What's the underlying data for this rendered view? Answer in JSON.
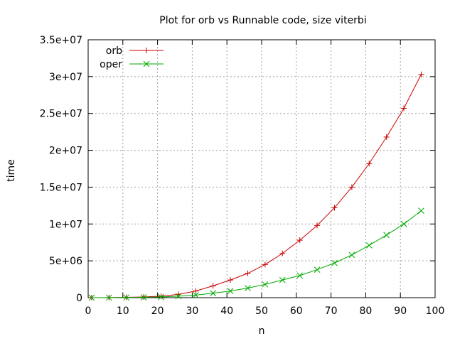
{
  "chart_data": {
    "type": "line",
    "title": "Plot for orb vs Runnable code, size viterbi",
    "xlabel": "n",
    "ylabel": "time",
    "xlim": [
      0,
      100
    ],
    "ylim": [
      0,
      35000000
    ],
    "x_ticks": [
      0,
      10,
      20,
      30,
      40,
      50,
      60,
      70,
      80,
      90,
      100
    ],
    "x_tick_labels": [
      "0",
      "10",
      "20",
      "30",
      "40",
      "50",
      "60",
      "70",
      "80",
      "90",
      "100"
    ],
    "y_ticks": [
      0,
      5000000,
      10000000,
      15000000,
      20000000,
      25000000,
      30000000,
      35000000
    ],
    "y_tick_labels": [
      "0",
      "5e+06",
      "1e+07",
      "1.5e+07",
      "2e+07",
      "2.5e+07",
      "3e+07",
      "3.5e+07"
    ],
    "grid": true,
    "legend_position": "top-left",
    "x": [
      1,
      6,
      11,
      16,
      21,
      26,
      31,
      36,
      41,
      46,
      51,
      56,
      61,
      66,
      71,
      76,
      81,
      86,
      91,
      96
    ],
    "series": [
      {
        "name": "orb",
        "color": "#cc0000",
        "marker": "plus",
        "values": [
          0,
          10000,
          50000,
          100000,
          200000,
          450000,
          900000,
          1600000,
          2400000,
          3300000,
          4500000,
          6000000,
          7800000,
          9800000,
          12200000,
          15000000,
          18200000,
          21800000,
          25700000,
          30300000
        ]
      },
      {
        "name": "oper",
        "color": "#00aa00",
        "marker": "cross",
        "values": [
          0,
          5000,
          20000,
          50000,
          100000,
          200000,
          350000,
          600000,
          900000,
          1300000,
          1800000,
          2400000,
          3000000,
          3800000,
          4700000,
          5800000,
          7100000,
          8500000,
          10000000,
          11800000
        ]
      }
    ]
  }
}
